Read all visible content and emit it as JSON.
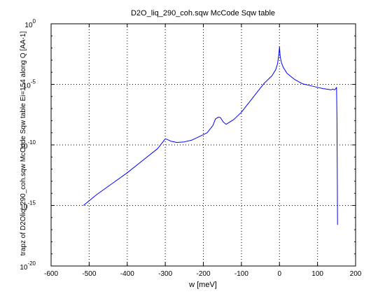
{
  "chart_data": {
    "type": "line",
    "title": "D2O_liq_290_coh.sqw McCode Sqw table",
    "xlabel": "w [meV]",
    "ylabel": "trapz of D2Oliq_290_coh.sqw McCode Sqw table Ei=154 along Q [AA-1]",
    "xlim": [
      -600,
      200
    ],
    "ylim_log10": [
      -20,
      0
    ],
    "y_scale": "log",
    "grid": true,
    "line_color": "#0000ff",
    "x_ticks": [
      {
        "value": -600,
        "label": "-600"
      },
      {
        "value": -500,
        "label": "-500"
      },
      {
        "value": -400,
        "label": "-400"
      },
      {
        "value": -300,
        "label": "-300"
      },
      {
        "value": -200,
        "label": "-200"
      },
      {
        "value": -100,
        "label": "-100"
      },
      {
        "value": 0,
        "label": "0"
      },
      {
        "value": 100,
        "label": "100"
      },
      {
        "value": 200,
        "label": "200"
      }
    ],
    "y_ticks": [
      {
        "exp": 0,
        "base": "10",
        "sup": "0"
      },
      {
        "exp": -5,
        "base": "10",
        "sup": "-5"
      },
      {
        "exp": -10,
        "base": "10",
        "sup": "-10"
      },
      {
        "exp": -15,
        "base": "10",
        "sup": "-15"
      },
      {
        "exp": -20,
        "base": "10",
        "sup": "-20"
      }
    ],
    "series": [
      {
        "x": [
          -515,
          -480,
          -440,
          -400,
          -360,
          -320,
          -305,
          -300,
          -295,
          -285,
          -270,
          -250,
          -230,
          -210,
          -190,
          -175,
          -168,
          -160,
          -155,
          -148,
          -140,
          -120,
          -100,
          -80,
          -60,
          -40,
          -20,
          -10,
          -5,
          -2,
          0,
          2,
          5,
          10,
          20,
          40,
          60,
          80,
          100,
          115,
          125,
          135,
          140,
          145,
          148,
          150,
          151,
          152,
          152.5
        ],
        "y_log10": [
          -15.0,
          -14.1,
          -13.2,
          -12.3,
          -11.3,
          -10.3,
          -9.7,
          -9.5,
          -9.55,
          -9.7,
          -9.8,
          -9.75,
          -9.6,
          -9.3,
          -9.0,
          -8.4,
          -7.85,
          -7.7,
          -7.75,
          -8.1,
          -8.3,
          -7.9,
          -7.3,
          -6.5,
          -5.7,
          -4.9,
          -4.3,
          -3.8,
          -3.3,
          -2.6,
          -1.9,
          -2.7,
          -3.2,
          -3.6,
          -4.1,
          -4.6,
          -4.95,
          -5.1,
          -5.25,
          -5.35,
          -5.4,
          -5.45,
          -5.4,
          -5.45,
          -5.35,
          -5.25,
          -8.0,
          -13.0,
          -16.6
        ]
      }
    ]
  }
}
